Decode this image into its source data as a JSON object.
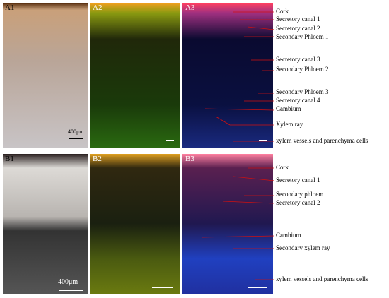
{
  "panels": {
    "a1": "A1",
    "a2": "A2",
    "a3": "A3",
    "b1": "B1",
    "b2": "B2",
    "b3": "B3"
  },
  "scale_bars": {
    "a1": "400μm",
    "b1": "400μm"
  },
  "a3_labels": [
    "Cork",
    "Secretory canal 1",
    "Secretory canal 2",
    "Secondary Phloem 1",
    "Secretory canal 3",
    "Secondary Phloem 2",
    "Secondary Phloem 3",
    "Secretory canal 4",
    "Cambium",
    "Xylem ray",
    "xylem vessels and parenchyma cells"
  ],
  "b3_labels": [
    "Cork",
    "Secretory canal 1",
    "Secondary phloem",
    "Secretory canal 2",
    "Cambium",
    "Secondary xylem ray",
    "xylem vessels and parenchyma cells"
  ]
}
